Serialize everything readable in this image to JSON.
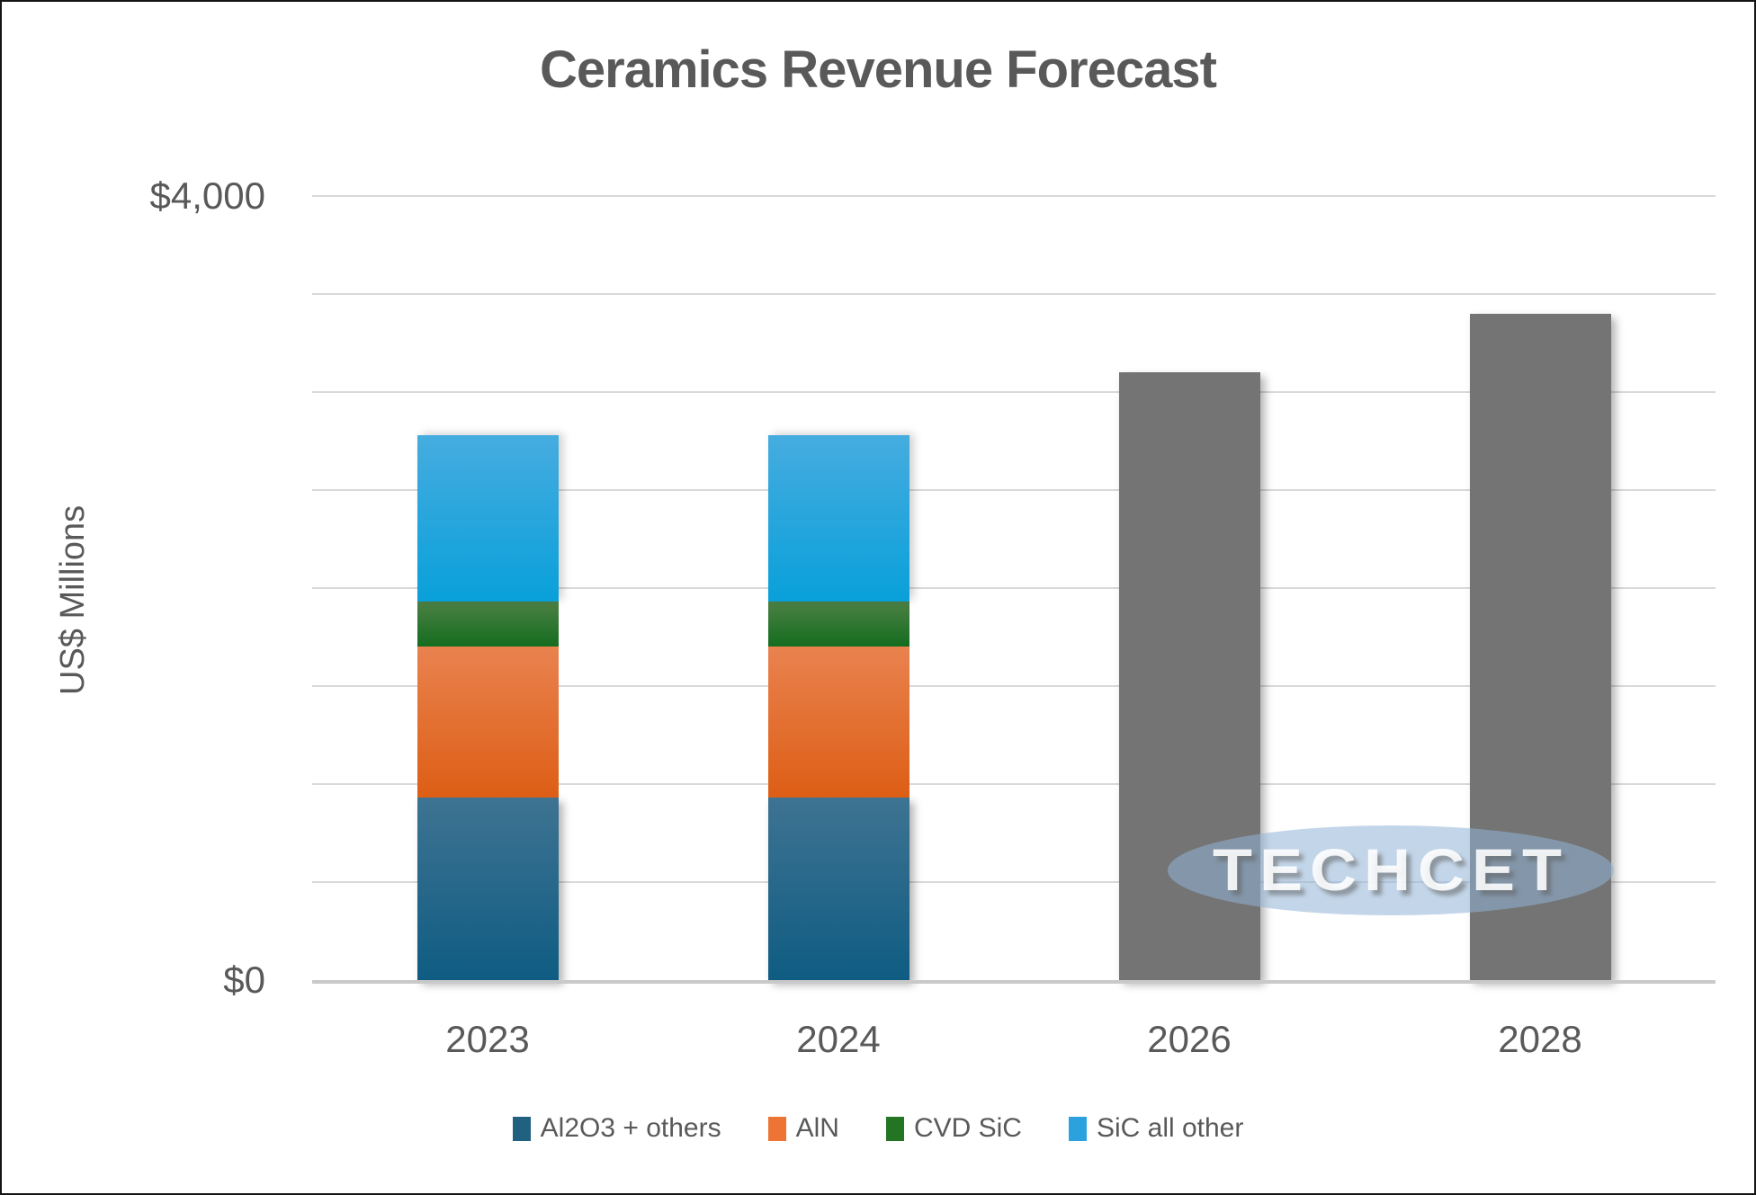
{
  "chart_data": {
    "type": "bar",
    "stacked": true,
    "title": "Ceramics Revenue Forecast",
    "ylabel": "US$ Millions",
    "xlabel": "",
    "categories": [
      "2023",
      "2024",
      "2026",
      "2028"
    ],
    "series": [
      {
        "name": "Al2O3 + others",
        "values": [
          930,
          930,
          0,
          0
        ],
        "legend_color": "#216180",
        "color_top": "#3E7392",
        "color_bottom": "#0F5C82"
      },
      {
        "name": "AlN",
        "values": [
          770,
          770,
          0,
          0
        ],
        "legend_color": "#ED7434",
        "color_top": "#E9824F",
        "color_bottom": "#DD5E15"
      },
      {
        "name": "CVD SiC",
        "values": [
          230,
          230,
          0,
          0
        ],
        "legend_color": "#237423",
        "color_top": "#4C8045",
        "color_bottom": "#146D1F"
      },
      {
        "name": "SiC all other",
        "values": [
          850,
          850,
          0,
          0
        ],
        "legend_color": "#2BA2DE",
        "color_top": "#46ACDF",
        "color_bottom": "#09A0DA"
      }
    ],
    "unsegmented_totals": {
      "values": [
        0,
        0,
        3100,
        3400
      ],
      "color": "#747474"
    },
    "stacked_totals": [
      2780,
      2780,
      3100,
      3400
    ],
    "ylim": [
      0,
      4000
    ],
    "ytick_interval": 500,
    "yticks_labeled": [
      {
        "value": 4000,
        "label": "$4,000"
      },
      {
        "value": 0,
        "label": "$0"
      }
    ],
    "grid": "horizontal",
    "legend_position": "bottom"
  },
  "watermark": {
    "text": "TECHCET"
  }
}
